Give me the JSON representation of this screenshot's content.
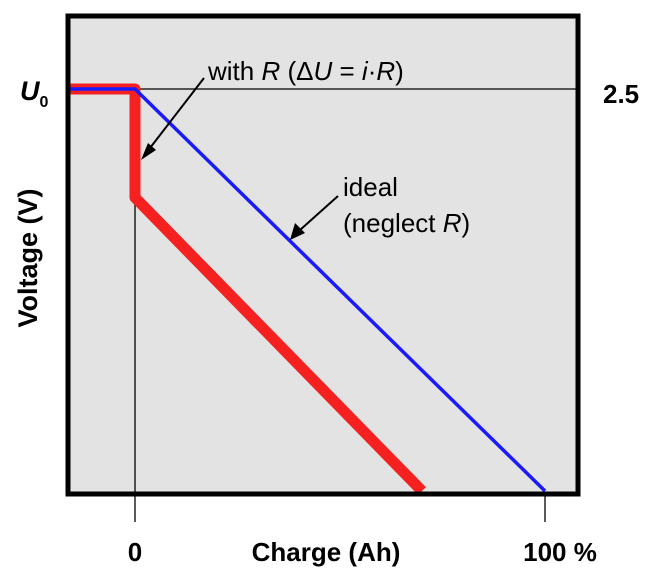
{
  "chart_data": {
    "type": "line",
    "ylabel": "Voltage (V)",
    "xlabel": "Charge (Ah)",
    "y_start_label": "U",
    "y_start_label_sub": "0",
    "y_value_label": "2.5",
    "x_tick_labels": [
      "0",
      "100 %"
    ],
    "x_range": [
      -16,
      108
    ],
    "y_range": [
      0,
      1.0
    ],
    "series": [
      {
        "color": "#f52020",
        "points": [
          [
            -16,
            1.0
          ],
          [
            0,
            1.0
          ],
          [
            0,
            0.73
          ],
          [
            70,
            0.0
          ]
        ]
      },
      {
        "color": "#1a1aff",
        "points": [
          [
            -16,
            1.0
          ],
          [
            0,
            1.0
          ],
          [
            100,
            0.0
          ]
        ]
      }
    ],
    "annotations": [
      {
        "id": "with-r",
        "parts": [
          "with ",
          "R",
          " (Δ",
          "U",
          " = ",
          "i",
          "·",
          "R",
          ")"
        ]
      },
      {
        "id": "ideal",
        "line1": "ideal",
        "line2_parts": [
          "(neglect ",
          "R",
          ")"
        ]
      }
    ],
    "grid": false
  }
}
